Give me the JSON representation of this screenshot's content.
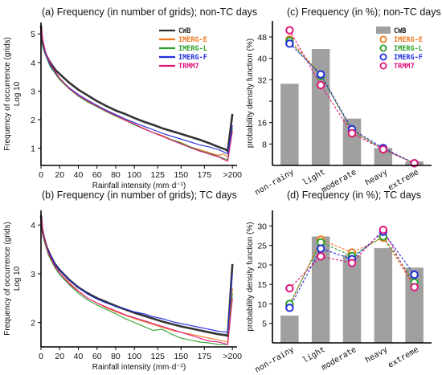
{
  "chart_data": [
    {
      "id": "a",
      "type": "line",
      "title": "(a) Frequency (in number of grids); non-TC days",
      "xlabel": "Rainfall intensity (mm·d⁻¹)",
      "ylabel": "Frequency of occurrence (grids)",
      "ylabel2": "Log 10",
      "xlim": [
        0,
        210
      ],
      "ylim": [
        0.4,
        5.4
      ],
      "xticks": [
        0,
        20,
        40,
        60,
        80,
        100,
        125,
        150,
        175,
        205
      ],
      "xticklabels": [
        "0",
        "20",
        "40",
        "60",
        "80",
        "100",
        "125",
        "150",
        "175",
        ">200"
      ],
      "yticks": [
        1,
        2,
        3,
        4,
        5
      ],
      "series": [
        {
          "name": "CWB",
          "color": "#333333",
          "width": 2.6,
          "x": [
            0,
            1,
            3,
            5,
            8,
            12,
            16,
            20,
            30,
            40,
            50,
            60,
            70,
            80,
            90,
            100,
            110,
            120,
            130,
            140,
            150,
            160,
            170,
            180,
            190,
            198,
            200,
            205
          ],
          "y": [
            5.3,
            4.8,
            4.5,
            4.3,
            4.1,
            3.9,
            3.72,
            3.6,
            3.3,
            3.05,
            2.85,
            2.65,
            2.48,
            2.32,
            2.2,
            2.06,
            1.93,
            1.82,
            1.7,
            1.6,
            1.5,
            1.4,
            1.3,
            1.18,
            1.05,
            0.95,
            0.9,
            2.2
          ]
        },
        {
          "name": "IMERG-E",
          "color": "#f07820",
          "width": 1.1,
          "x": [
            0,
            2,
            5,
            10,
            20,
            30,
            40,
            50,
            60,
            70,
            80,
            90,
            100,
            110,
            120,
            130,
            140,
            150,
            160,
            170,
            180,
            190,
            195,
            200,
            205
          ],
          "y": [
            5.2,
            4.7,
            4.25,
            3.85,
            3.4,
            3.1,
            2.85,
            2.65,
            2.5,
            2.3,
            2.15,
            2.0,
            1.85,
            1.7,
            1.55,
            1.45,
            1.3,
            1.2,
            1.05,
            0.95,
            0.85,
            0.75,
            0.8,
            0.7,
            1.6
          ]
        },
        {
          "name": "IMERG-L",
          "color": "#2aa02a",
          "width": 1.1,
          "x": [
            0,
            2,
            5,
            10,
            20,
            30,
            40,
            50,
            60,
            70,
            80,
            90,
            100,
            110,
            120,
            130,
            140,
            150,
            160,
            170,
            180,
            190,
            195,
            200,
            205
          ],
          "y": [
            5.2,
            4.7,
            4.25,
            3.85,
            3.4,
            3.08,
            2.82,
            2.62,
            2.45,
            2.28,
            2.12,
            1.98,
            1.82,
            1.68,
            1.55,
            1.42,
            1.3,
            1.18,
            1.05,
            0.92,
            0.82,
            0.72,
            0.65,
            0.6,
            1.7
          ]
        },
        {
          "name": "IMERG-F",
          "color": "#1f2ee0",
          "width": 1.1,
          "x": [
            0,
            2,
            5,
            10,
            20,
            30,
            40,
            50,
            60,
            70,
            80,
            90,
            100,
            110,
            120,
            130,
            140,
            150,
            160,
            170,
            180,
            190,
            195,
            200,
            205
          ],
          "y": [
            5.25,
            4.75,
            4.3,
            3.9,
            3.45,
            3.12,
            2.88,
            2.68,
            2.5,
            2.33,
            2.18,
            2.03,
            1.9,
            1.77,
            1.65,
            1.52,
            1.42,
            1.32,
            1.22,
            1.12,
            1.05,
            0.95,
            0.88,
            0.8,
            1.8
          ]
        },
        {
          "name": "TRMM7",
          "color": "#e0157a",
          "width": 1.1,
          "x": [
            0,
            2,
            5,
            10,
            20,
            30,
            40,
            50,
            60,
            70,
            80,
            90,
            100,
            110,
            120,
            130,
            140,
            150,
            160,
            170,
            180,
            190,
            195,
            200,
            205
          ],
          "y": [
            5.3,
            4.8,
            4.35,
            3.95,
            3.45,
            3.1,
            2.85,
            2.65,
            2.48,
            2.3,
            2.15,
            1.98,
            1.85,
            1.68,
            1.55,
            1.42,
            1.28,
            1.15,
            1.02,
            0.9,
            0.8,
            0.7,
            0.62,
            0.55,
            1.6
          ]
        }
      ],
      "legend": "top-right"
    },
    {
      "id": "b",
      "type": "line",
      "title": "(b) Frequency (in number of grids); TC days",
      "xlabel": "Rainfall intensity (mm·d⁻¹)",
      "ylabel": "Frequency of occurrence (grids)",
      "ylabel2": "Log 10",
      "xlim": [
        0,
        210
      ],
      "ylim": [
        1.5,
        4.3
      ],
      "xticks": [
        0,
        20,
        40,
        60,
        80,
        100,
        125,
        150,
        175,
        205
      ],
      "xticklabels": [
        "0",
        "20",
        "40",
        "60",
        "80",
        "100",
        "125",
        "150",
        "175",
        ">200"
      ],
      "yticks": [
        2,
        3,
        4
      ],
      "series": [
        {
          "name": "CWB",
          "color": "#333333",
          "width": 2.6,
          "x": [
            0,
            1,
            3,
            6,
            10,
            15,
            20,
            30,
            40,
            50,
            60,
            70,
            80,
            90,
            100,
            110,
            120,
            130,
            140,
            150,
            160,
            170,
            180,
            190,
            198,
            200,
            205
          ],
          "y": [
            4.2,
            3.95,
            3.75,
            3.55,
            3.38,
            3.2,
            3.08,
            2.88,
            2.72,
            2.6,
            2.5,
            2.42,
            2.34,
            2.27,
            2.2,
            2.14,
            2.08,
            2.02,
            1.97,
            1.92,
            1.88,
            1.84,
            1.8,
            1.76,
            1.74,
            1.72,
            3.2
          ]
        },
        {
          "name": "IMERG-E",
          "color": "#f07820",
          "width": 1.1,
          "x": [
            0,
            3,
            8,
            15,
            20,
            30,
            40,
            50,
            60,
            70,
            80,
            90,
            100,
            110,
            120,
            130,
            140,
            150,
            160,
            170,
            180,
            190,
            200,
            205
          ],
          "y": [
            4.15,
            3.7,
            3.4,
            3.15,
            3.02,
            2.82,
            2.65,
            2.5,
            2.4,
            2.3,
            2.22,
            2.15,
            2.08,
            2.02,
            1.96,
            1.9,
            1.84,
            1.8,
            1.76,
            1.72,
            1.68,
            1.64,
            1.6,
            2.7
          ]
        },
        {
          "name": "IMERG-L",
          "color": "#2aa02a",
          "width": 1.1,
          "x": [
            0,
            3,
            8,
            15,
            20,
            30,
            40,
            50,
            60,
            70,
            80,
            90,
            100,
            110,
            120,
            130,
            140,
            150,
            160,
            170,
            180,
            190,
            200,
            205
          ],
          "y": [
            4.15,
            3.7,
            3.38,
            3.12,
            2.98,
            2.78,
            2.6,
            2.46,
            2.36,
            2.27,
            2.18,
            2.08,
            2.0,
            1.92,
            1.84,
            1.86,
            1.76,
            1.68,
            1.64,
            1.6,
            1.58,
            1.55,
            1.55,
            2.6
          ]
        },
        {
          "name": "IMERG-F",
          "color": "#1f2ee0",
          "width": 1.1,
          "x": [
            0,
            3,
            8,
            15,
            20,
            30,
            40,
            50,
            60,
            70,
            80,
            90,
            100,
            110,
            120,
            130,
            140,
            150,
            160,
            170,
            180,
            190,
            200,
            205
          ],
          "y": [
            4.18,
            3.75,
            3.45,
            3.2,
            3.08,
            2.88,
            2.72,
            2.58,
            2.48,
            2.4,
            2.33,
            2.28,
            2.22,
            2.18,
            2.12,
            2.08,
            2.02,
            1.98,
            1.94,
            1.9,
            1.86,
            1.82,
            1.8,
            3.0
          ]
        },
        {
          "name": "TRMM7",
          "color": "#e0157a",
          "width": 1.1,
          "x": [
            0,
            3,
            8,
            15,
            20,
            30,
            40,
            50,
            60,
            70,
            80,
            90,
            100,
            110,
            120,
            130,
            140,
            150,
            160,
            170,
            180,
            190,
            200,
            205
          ],
          "y": [
            4.2,
            3.75,
            3.42,
            3.15,
            3.02,
            2.8,
            2.64,
            2.5,
            2.4,
            2.32,
            2.24,
            2.16,
            2.1,
            2.04,
            1.98,
            1.92,
            1.86,
            1.8,
            1.74,
            1.68,
            1.62,
            1.6,
            1.55,
            2.5
          ]
        }
      ]
    },
    {
      "id": "c",
      "type": "bar",
      "title": "(c) Frequency (in %); non-TC days",
      "ylabel": "probability density function (%)",
      "categories": [
        "non-rainy",
        "light",
        "moderate",
        "heavy",
        "extreme"
      ],
      "ylim": [
        0,
        54
      ],
      "yticks": [
        8,
        16,
        24,
        32,
        40,
        48
      ],
      "yticklabels": [
        "8",
        "16",
        "",
        "32",
        "40",
        "48"
      ],
      "bar_series": {
        "name": "CWB",
        "color": "#a0a0a0",
        "values": [
          30.5,
          43.5,
          17.5,
          6.5,
          1.5
        ]
      },
      "series": [
        {
          "name": "IMERG-E",
          "color": "#f07820",
          "values": [
            47.0,
            34.0,
            13.0,
            6.0,
            0.8
          ]
        },
        {
          "name": "IMERG-L",
          "color": "#2aa02a",
          "values": [
            46.5,
            33.5,
            13.0,
            6.0,
            0.8
          ]
        },
        {
          "name": "IMERG-F",
          "color": "#1f2ee0",
          "values": [
            45.5,
            34.0,
            13.5,
            6.5,
            0.8
          ]
        },
        {
          "name": "TRMM7",
          "color": "#e0157a",
          "values": [
            50.5,
            30.0,
            12.0,
            6.0,
            0.8
          ]
        }
      ],
      "legend": "top-right"
    },
    {
      "id": "d",
      "type": "bar",
      "title": "(d) Frequency (in %); TC days",
      "ylabel": "probability density function (%)",
      "categories": [
        "non-rainy",
        "light",
        "moderate",
        "heavy",
        "extreme"
      ],
      "ylim": [
        0,
        34
      ],
      "yticks": [
        5,
        10,
        15,
        20,
        25,
        30
      ],
      "yticklabels": [
        "5",
        "10",
        "15",
        "20",
        "25",
        "30"
      ],
      "bar_series": {
        "name": "CWB",
        "color": "#a0a0a0",
        "values": [
          7.0,
          27.3,
          22.5,
          24.3,
          19.3
        ]
      },
      "series": [
        {
          "name": "IMERG-E",
          "color": "#f07820",
          "values": [
            9.5,
            26.5,
            23.2,
            27.0,
            14.5
          ]
        },
        {
          "name": "IMERG-L",
          "color": "#2aa02a",
          "values": [
            10.0,
            25.8,
            22.3,
            27.3,
            15.5
          ]
        },
        {
          "name": "IMERG-F",
          "color": "#1f2ee0",
          "values": [
            9.0,
            24.2,
            21.5,
            28.5,
            17.5
          ]
        },
        {
          "name": "TRMM7",
          "color": "#e0157a",
          "values": [
            14.0,
            22.2,
            20.5,
            29.0,
            14.3
          ]
        }
      ]
    }
  ]
}
